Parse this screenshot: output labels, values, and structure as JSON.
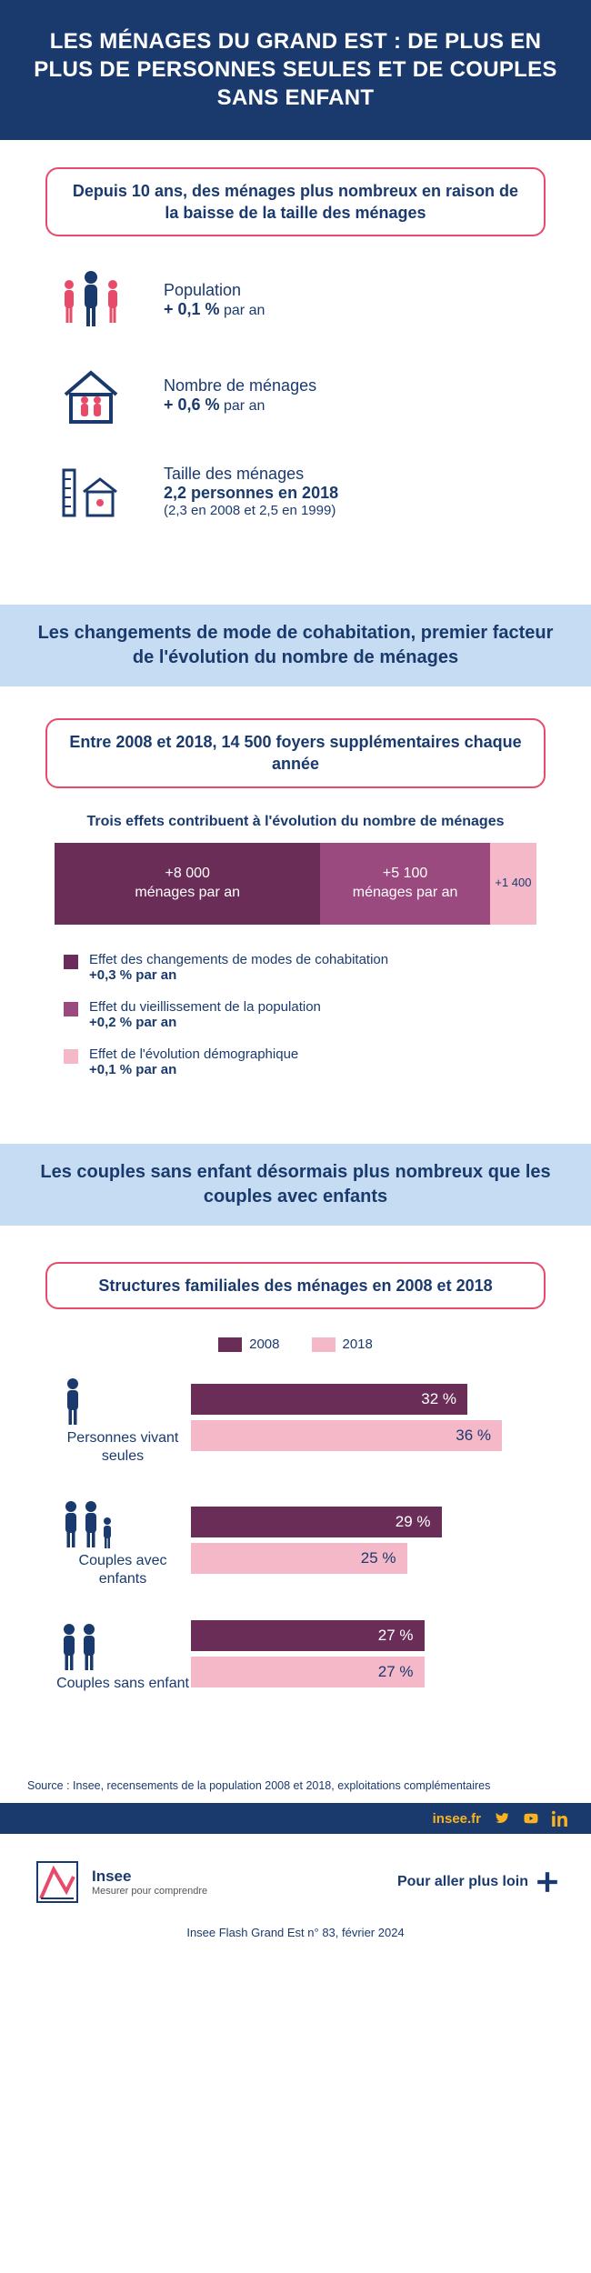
{
  "colors": {
    "navy": "#1a3a6e",
    "accent_red": "#e84b6a",
    "blue_band": "#c5dcf2",
    "plum_dark": "#6a2d57",
    "plum_mid": "#9b4a7f",
    "pink_light": "#f4b8c8",
    "gold": "#fab31e"
  },
  "header": {
    "title": "LES MÉNAGES DU GRAND EST : DE PLUS EN PLUS DE PERSONNES SEULES ET DE COUPLES SANS ENFANT"
  },
  "intro": {
    "callout": "Depuis 10 ans, des ménages plus nombreux en raison de la baisse de la taille des ménages",
    "stats": [
      {
        "icon": "people",
        "label": "Population",
        "value": "+ 0,1 %",
        "suffix": " par an"
      },
      {
        "icon": "house",
        "label": "Nombre de ménages",
        "value": "+ 0,6 %",
        "suffix": " par an"
      },
      {
        "icon": "ruler",
        "label": "Taille des ménages",
        "value": "2,2 personnes en 2018",
        "extra": "(2,3 en 2008 et 2,5 en 1999)"
      }
    ]
  },
  "section2": {
    "band": "Les changements de mode de cohabitation, premier facteur de l'évolution du nombre de ménages",
    "callout": "Entre 2008 et 2018, 14 500 foyers supplémentaires chaque année",
    "caption": "Trois effets contribuent à l'évolution du nombre de ménages",
    "stack": {
      "segments": [
        {
          "value": 8000,
          "label_top": "+8 000",
          "label_bot": "ménages par an",
          "color": "#6a2d57",
          "text_color": "#ffffff"
        },
        {
          "value": 5100,
          "label_top": "+5 100",
          "label_bot": "ménages par an",
          "color": "#9b4a7f",
          "text_color": "#ffffff"
        },
        {
          "value": 1400,
          "label_top": "+1 400",
          "label_bot": "",
          "color": "#f4b8c8",
          "text_color": "#1a3a6e"
        }
      ],
      "total": 14500
    },
    "legend": [
      {
        "color": "#6a2d57",
        "text": "Effet des changements de modes de cohabitation",
        "sub": "+0,3 % par an"
      },
      {
        "color": "#9b4a7f",
        "text": "Effet du vieillissement de la population",
        "sub": "+0,2 % par an"
      },
      {
        "color": "#f4b8c8",
        "text": "Effet de l'évolution démographique",
        "sub": "+0,1 % par an"
      }
    ]
  },
  "section3": {
    "band": "Les couples sans enfant désormais plus nombreux que les couples avec enfants",
    "callout": "Structures familiales des ménages en 2008 et 2018",
    "legend": {
      "a": "2008",
      "b": "2018",
      "color_a": "#6a2d57",
      "color_b": "#f4b8c8"
    },
    "max_pct": 40,
    "groups": [
      {
        "icon": "single",
        "label": "Personnes vivant seules",
        "v2008": 32,
        "v2018": 36
      },
      {
        "icon": "family",
        "label": "Couples avec enfants",
        "v2008": 29,
        "v2018": 25
      },
      {
        "icon": "couple",
        "label": "Couples sans enfant",
        "v2008": 27,
        "v2018": 27
      }
    ]
  },
  "source": "Source : Insee, recensements de la population 2008 et 2018, exploitations complémentaires",
  "footer": {
    "site": "insee.fr",
    "logo_name": "Insee",
    "logo_tag": "Mesurer pour comprendre",
    "more": "Pour aller plus loin",
    "pubref": "Insee Flash Grand Est n° 83, février 2024"
  }
}
